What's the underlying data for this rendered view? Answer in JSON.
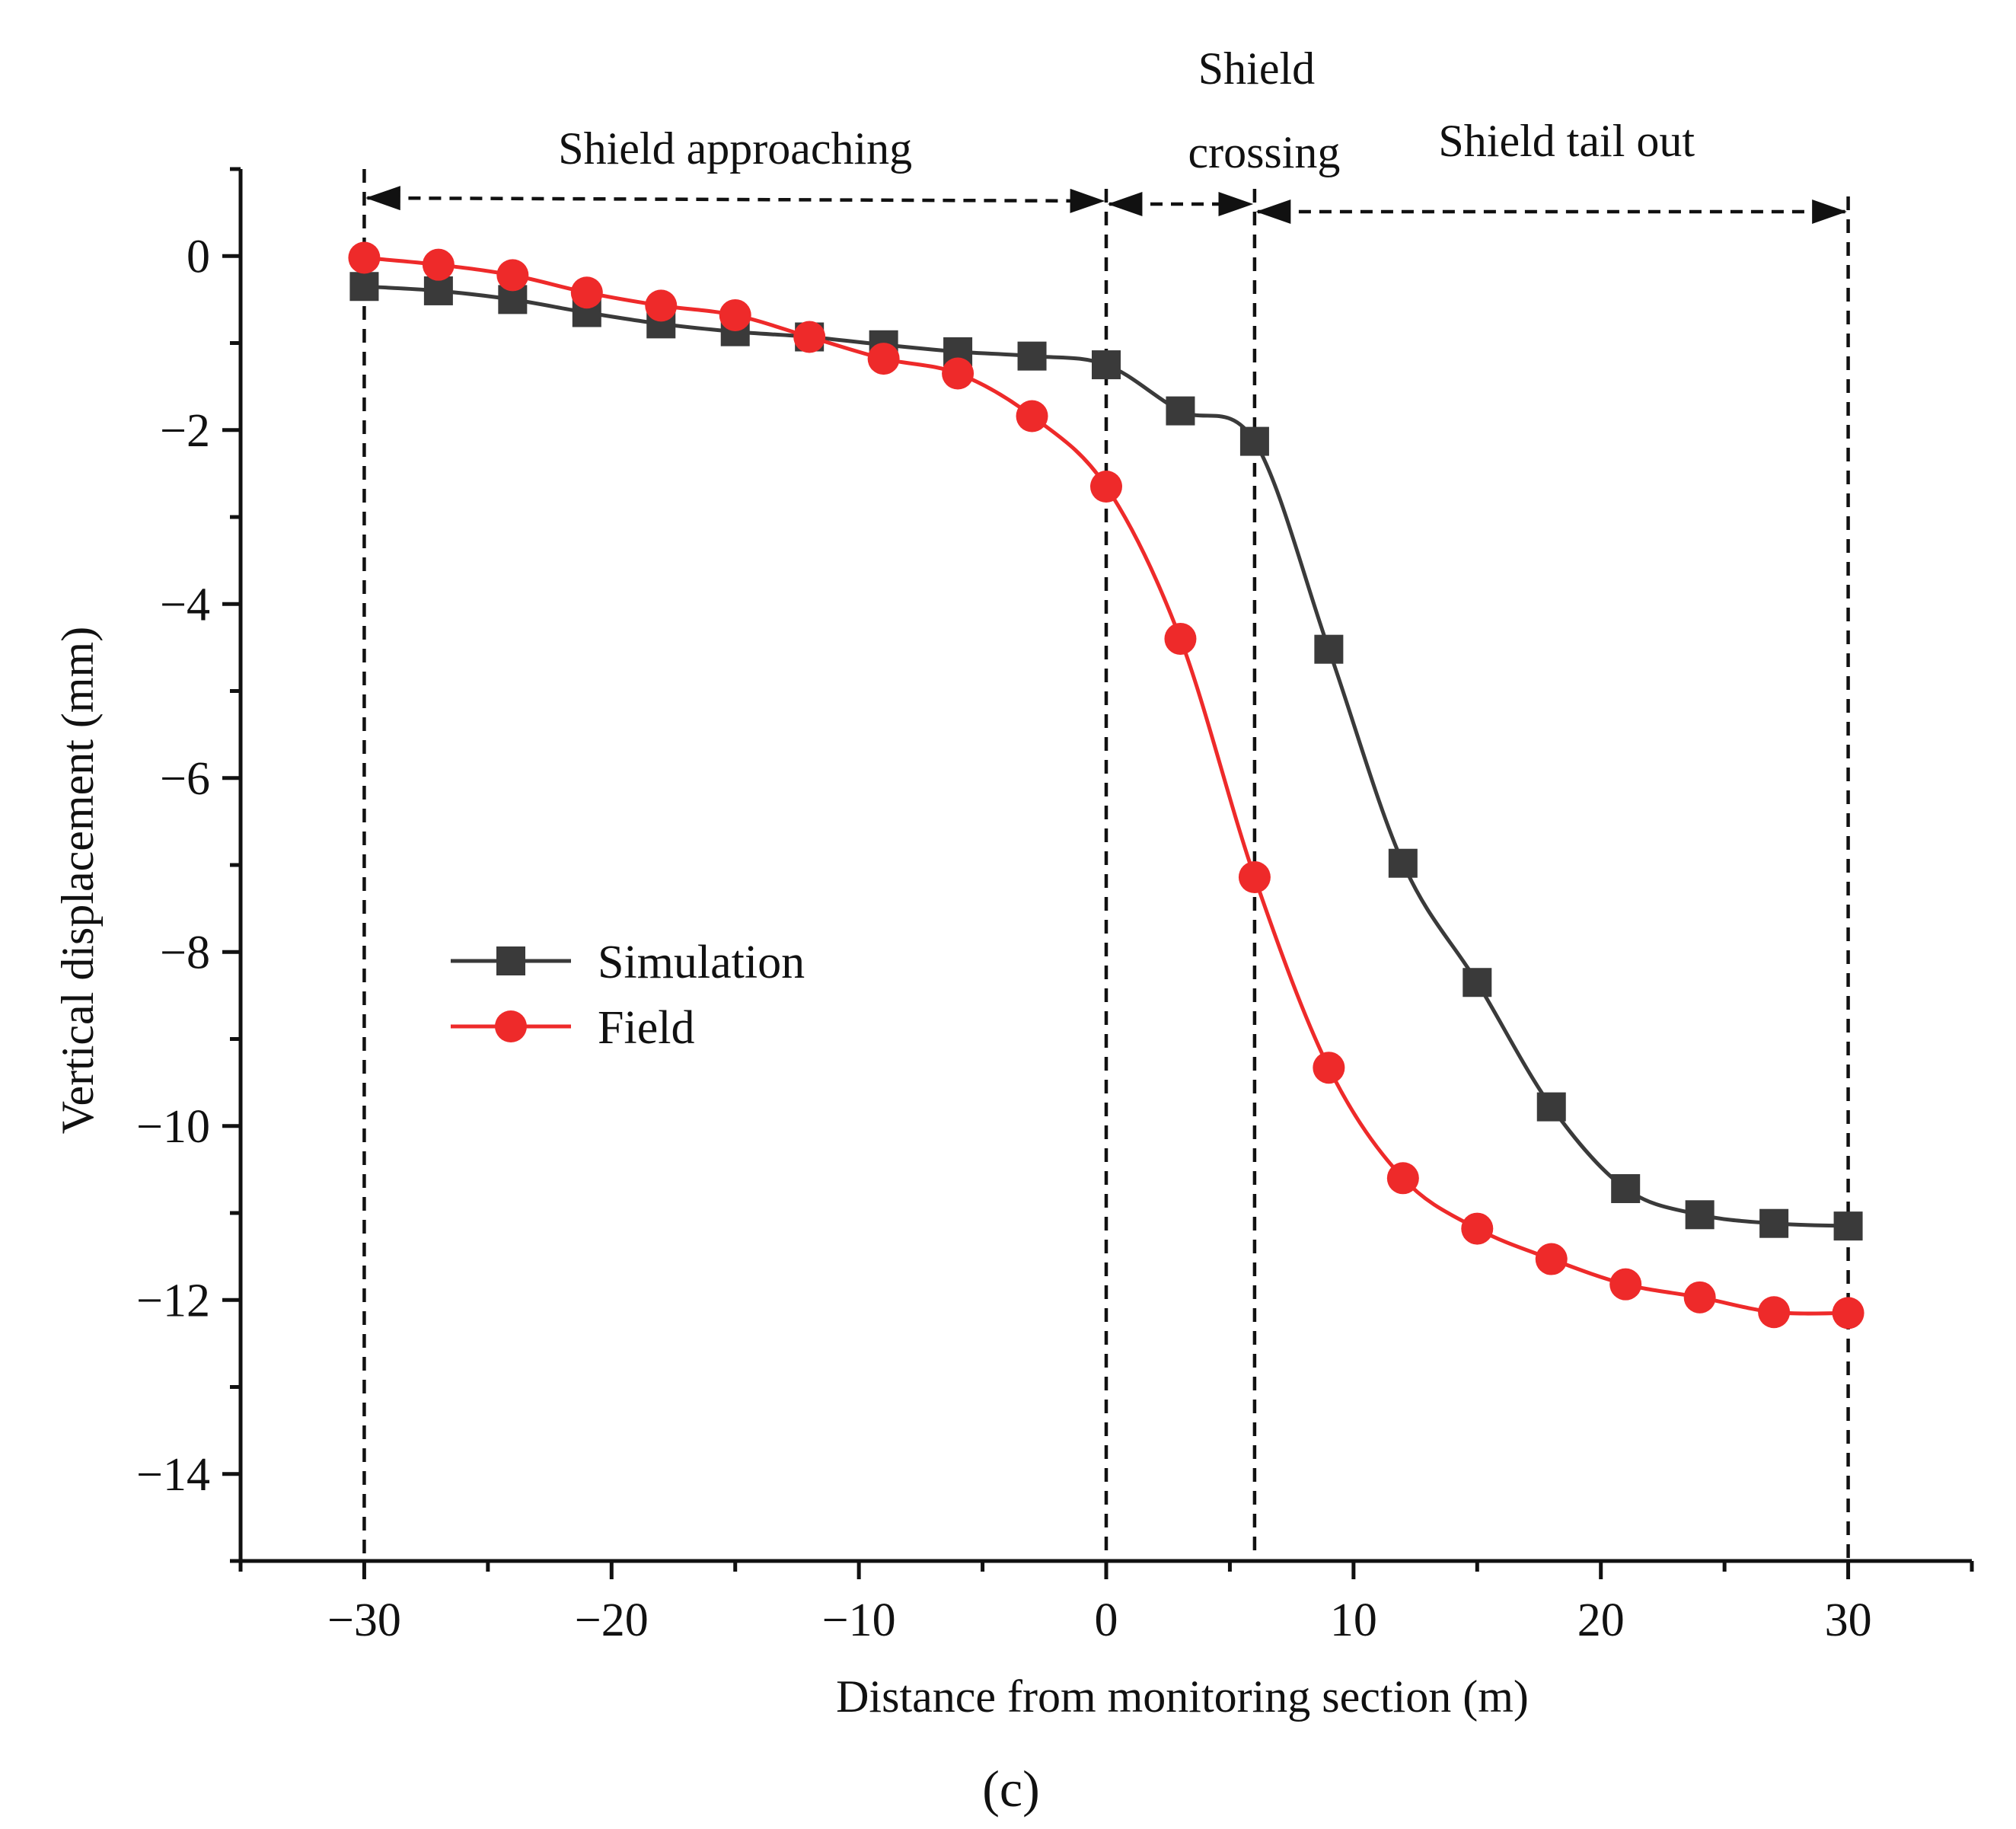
{
  "chart_data": {
    "type": "line",
    "title": "",
    "xlabel": "Distance from monitoring section (m)",
    "ylabel": "Vertical displacement (mm)",
    "xlim": [
      -35,
      35
    ],
    "ylim": [
      -15,
      1
    ],
    "xticks": [
      -30,
      -20,
      -10,
      0,
      10,
      20,
      30
    ],
    "xtick_labels": [
      "−30",
      "−20",
      "−10",
      "0",
      "10",
      "20",
      "30"
    ],
    "yticks": [
      0,
      -2,
      -4,
      -6,
      -8,
      -10,
      -12,
      -14
    ],
    "ytick_labels": [
      "0",
      "−2",
      "−4",
      "−6",
      "−8",
      "−10",
      "−12",
      "−14"
    ],
    "grid": false,
    "legend_position": "center-left",
    "x": [
      -30,
      -27,
      -24,
      -21,
      -18,
      -15,
      -12,
      -9,
      -6,
      -3,
      0,
      3,
      6,
      9,
      12,
      15,
      18,
      21,
      24,
      27,
      30
    ],
    "series": [
      {
        "name": "Simulation",
        "color": "#3a3a3a",
        "marker": "square",
        "values": [
          -0.35,
          -0.4,
          -0.5,
          -0.65,
          -0.78,
          -0.87,
          -0.93,
          -1.02,
          -1.1,
          -1.15,
          -1.25,
          -1.78,
          -2.13,
          -4.52,
          -6.98,
          -8.35,
          -9.78,
          -10.72,
          -11.02,
          -11.12,
          -11.15
        ]
      },
      {
        "name": "Field",
        "color": "#ee2a2a",
        "marker": "circle",
        "values": [
          -0.02,
          -0.1,
          -0.22,
          -0.42,
          -0.57,
          -0.68,
          -0.93,
          -1.18,
          -1.35,
          -1.84,
          -2.65,
          -4.4,
          -7.14,
          -9.33,
          -10.6,
          -11.18,
          -11.53,
          -11.82,
          -11.97,
          -12.14,
          -12.15
        ]
      }
    ],
    "annotations": {
      "phase_boundaries_x": [
        -30,
        0,
        6,
        30
      ],
      "phases": [
        {
          "label": "Shield approaching",
          "from": -30,
          "to": 0
        },
        {
          "label_line1": "Shield",
          "label_line2": "crossing",
          "from": 0,
          "to": 6
        },
        {
          "label": "Shield tail out",
          "from": 6,
          "to": 30
        }
      ]
    },
    "panel_label": "(c)"
  }
}
